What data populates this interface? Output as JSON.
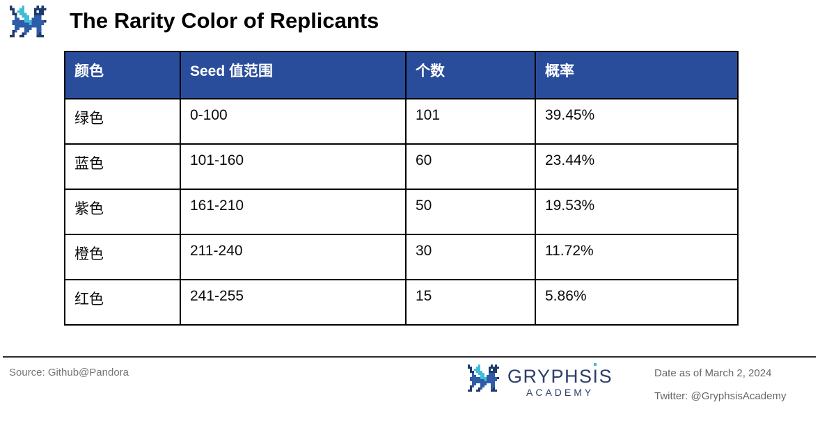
{
  "page": {
    "title": "The Rarity Color of Replicants"
  },
  "table": {
    "headers": [
      "颜色",
      "Seed 值范围",
      "个数",
      "概率"
    ],
    "rows": [
      [
        "绿色",
        "0-100",
        "101",
        "39.45%"
      ],
      [
        "蓝色",
        "101-160",
        "60",
        "23.44%"
      ],
      [
        "紫色",
        "161-210",
        "50",
        "19.53%"
      ],
      [
        "橙色",
        "211-240",
        "30",
        "11.72%"
      ],
      [
        "红色",
        "241-255",
        "15",
        "5.86%"
      ]
    ]
  },
  "chart_data": {
    "type": "table",
    "title": "The Rarity Color of Replicants",
    "columns": [
      "颜色",
      "Seed 值范围",
      "个数",
      "概率"
    ],
    "rows": [
      {
        "color": "绿色",
        "seed_range": "0-100",
        "count": 101,
        "probability_pct": 39.45
      },
      {
        "color": "蓝色",
        "seed_range": "101-160",
        "count": 60,
        "probability_pct": 23.44
      },
      {
        "color": "紫色",
        "seed_range": "161-210",
        "count": 50,
        "probability_pct": 19.53
      },
      {
        "color": "橙色",
        "seed_range": "211-240",
        "count": 30,
        "probability_pct": 11.72
      },
      {
        "color": "红色",
        "seed_range": "241-255",
        "count": 15,
        "probability_pct": 5.86
      }
    ],
    "source": "Source: Github@Pandora",
    "date_note": "Date as of March 2, 2024"
  },
  "footer": {
    "source": "Source: Github@Pandora",
    "logo": {
      "name_parts": [
        "GRYPHS",
        "I",
        "S"
      ],
      "subtitle": "ACADEMY"
    },
    "date": "Date as of March 2, 2024",
    "twitter": "Twitter: @GryphsisAcademy"
  },
  "colors": {
    "header_bg": "#2A4D9B",
    "table_border": "#000000",
    "logo_navy": "#2C3E6B",
    "logo_cyan": "#41BCD9",
    "dragon_navy": "#1D3A6E",
    "dragon_blue": "#2E5CA9",
    "dragon_cyan": "#41BCD9",
    "muted_text": "#6E6E6E"
  }
}
